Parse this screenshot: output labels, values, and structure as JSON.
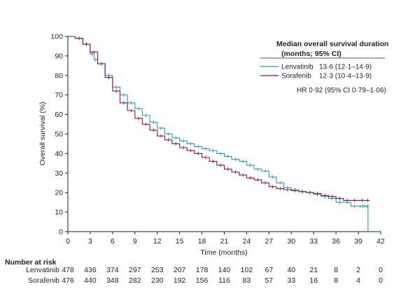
{
  "chart_data": {
    "type": "line",
    "title": "",
    "xlabel": "Time (months)",
    "ylabel": "Overall survival (%)",
    "xlim": [
      0,
      42
    ],
    "ylim": [
      0,
      100
    ],
    "xticks": [
      0,
      3,
      6,
      9,
      12,
      15,
      18,
      21,
      24,
      27,
      30,
      33,
      36,
      39,
      42
    ],
    "yticks": [
      0,
      10,
      20,
      30,
      40,
      50,
      60,
      70,
      80,
      90,
      100
    ],
    "grid": false,
    "legend": {
      "title": "Median overall survival duration (months; 95% CI)",
      "title_line1": "Median overall survival duration",
      "title_line2": "(months; 95% CI)",
      "placement": "top-right"
    },
    "annotation": "HR 0·92 (95% CI 0·79–1·06)",
    "series": [
      {
        "name": "Lenvatinib",
        "stat": "13·6 (12·1–14·9)",
        "color": "#2b9bb0",
        "x": [
          0,
          1,
          2,
          3,
          3.5,
          4,
          5,
          6,
          7,
          8,
          9,
          10,
          11,
          12,
          13,
          14,
          15,
          16,
          17,
          18,
          19,
          20,
          21,
          22,
          23,
          24,
          25,
          26,
          27,
          28,
          29,
          30,
          31,
          32,
          33,
          34,
          35,
          36,
          37,
          38,
          39,
          39.5,
          39.7,
          40,
          40.3,
          40.3
        ],
        "y": [
          100,
          99,
          96,
          91,
          88,
          86,
          80,
          74,
          70,
          66,
          63,
          59.5,
          56,
          53,
          50,
          48,
          46.5,
          45,
          43.5,
          42.5,
          41.5,
          40,
          38.5,
          37,
          36,
          34,
          32,
          31,
          28,
          25,
          22.5,
          21.5,
          20.5,
          20,
          19,
          18,
          17,
          15,
          15,
          13,
          13,
          13,
          13,
          13,
          13,
          0
        ]
      },
      {
        "name": "Sorafenib",
        "stat": "12·3 (10·4–13·9)",
        "color": "#8a1538",
        "x": [
          0,
          1,
          2,
          3,
          4,
          5,
          6,
          7,
          8,
          9,
          10,
          11,
          12,
          13,
          14,
          15,
          16,
          17,
          18,
          19,
          20,
          21,
          22,
          23,
          24,
          25,
          26,
          27,
          28,
          29,
          30,
          31,
          32,
          33,
          34,
          35,
          36,
          37,
          38,
          39,
          40,
          40.5
        ],
        "y": [
          100,
          99,
          96,
          92,
          86,
          79,
          72,
          66,
          62,
          58,
          55,
          52,
          49,
          47,
          45,
          43,
          41.5,
          40,
          38,
          36,
          34,
          32,
          30.5,
          29,
          27.5,
          26.5,
          25,
          23,
          22,
          21.5,
          21,
          20.5,
          20,
          19.5,
          18.5,
          18,
          17,
          16,
          16,
          16,
          16,
          16
        ]
      }
    ],
    "number_at_risk": {
      "heading": "Number at risk",
      "times": [
        0,
        3,
        6,
        9,
        12,
        15,
        18,
        21,
        24,
        27,
        30,
        33,
        36,
        39,
        42
      ],
      "rows": [
        {
          "name": "Lenvatinib",
          "values": [
            "478",
            "436",
            "374",
            "297",
            "253",
            "207",
            "178",
            "140",
            "102",
            "67",
            "40",
            "21",
            "8",
            "2",
            "0"
          ]
        },
        {
          "name": "Sorafenib",
          "values": [
            "476",
            "440",
            "348",
            "282",
            "230",
            "192",
            "156",
            "116",
            "83",
            "57",
            "33",
            "16",
            "8",
            "4",
            "0"
          ]
        }
      ]
    }
  }
}
